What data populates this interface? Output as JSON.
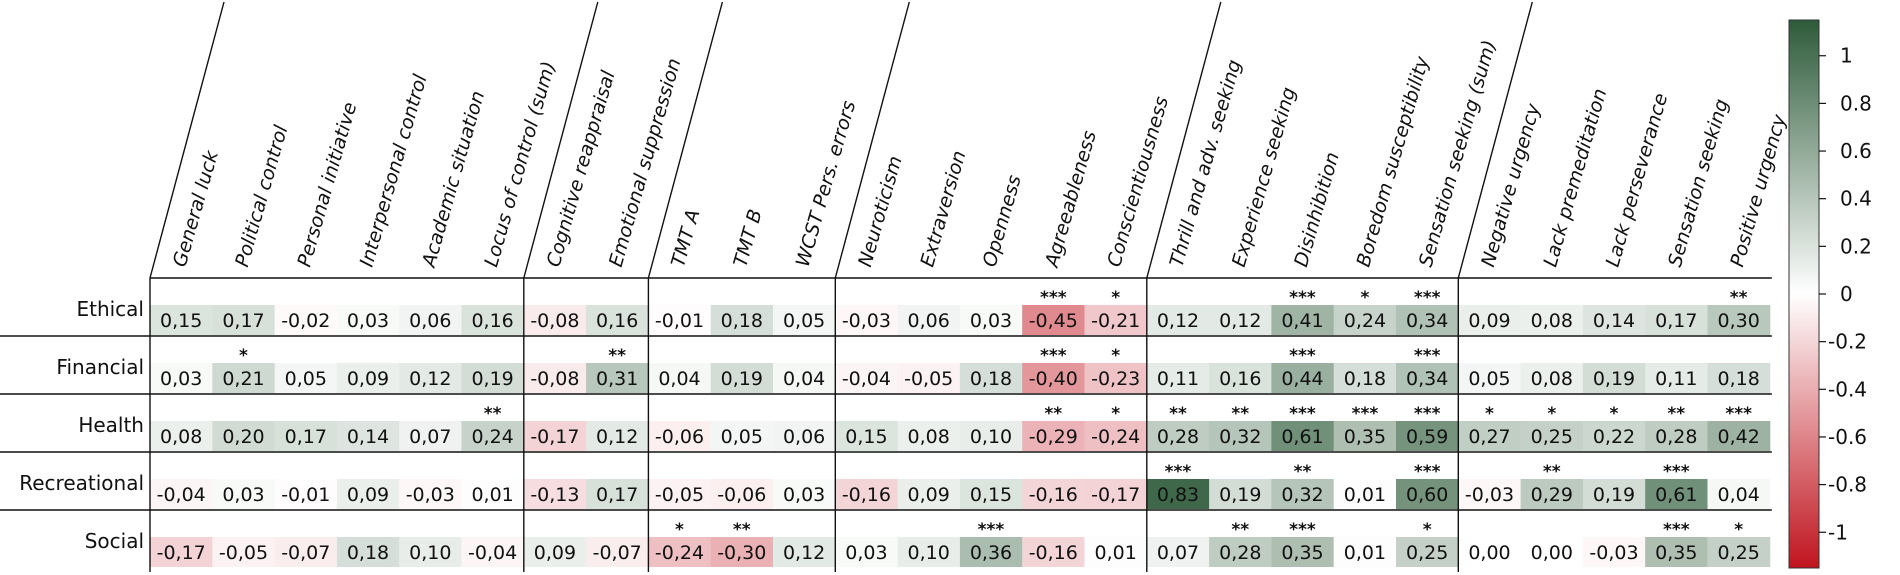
{
  "chart_data": {
    "type": "heatmap",
    "columns": [
      "General luck",
      "Political control",
      "Personal initiative",
      "Interpersonal control",
      "Academic situation",
      "Locus of control (sum)",
      "Cognitive reappraisal",
      "Emotional suppression",
      "TMT A",
      "TMT B",
      "WCST Pers. errors",
      "Neuroticism",
      "Extraversion",
      "Openness",
      "Agreeableness",
      "Conscientiousness",
      "Thrill and adv. seeking",
      "Experience seeking",
      "Disinhibition",
      "Boredom susceptibility",
      "Sensation seeking (sum)",
      "Negative urgency",
      "Lack premeditation",
      "Lack perseverance",
      "Sensation seeking",
      "Positive urgency"
    ],
    "rows": [
      "Ethical",
      "Financial",
      "Health",
      "Recreational",
      "Social"
    ],
    "values": [
      [
        0.15,
        0.17,
        -0.02,
        0.03,
        0.06,
        0.16,
        -0.08,
        0.16,
        -0.01,
        0.18,
        0.05,
        -0.03,
        0.06,
        0.03,
        -0.45,
        -0.21,
        0.12,
        0.12,
        0.41,
        0.24,
        0.34,
        0.09,
        0.08,
        0.14,
        0.17,
        0.3
      ],
      [
        0.03,
        0.21,
        0.05,
        0.09,
        0.12,
        0.19,
        -0.08,
        0.31,
        0.04,
        0.19,
        0.04,
        -0.04,
        -0.05,
        0.18,
        -0.4,
        -0.23,
        0.11,
        0.16,
        0.44,
        0.18,
        0.34,
        0.05,
        0.08,
        0.19,
        0.11,
        0.18
      ],
      [
        0.08,
        0.2,
        0.17,
        0.14,
        0.07,
        0.24,
        -0.17,
        0.12,
        -0.06,
        0.05,
        0.06,
        0.15,
        0.08,
        0.1,
        -0.29,
        -0.24,
        0.28,
        0.32,
        0.61,
        0.35,
        0.59,
        0.27,
        0.25,
        0.22,
        0.28,
        0.42
      ],
      [
        -0.04,
        0.03,
        -0.01,
        0.09,
        -0.03,
        0.01,
        -0.13,
        0.17,
        -0.05,
        -0.06,
        0.03,
        -0.16,
        0.09,
        0.15,
        -0.16,
        -0.17,
        0.83,
        0.19,
        0.32,
        0.01,
        0.6,
        -0.03,
        0.29,
        0.19,
        0.61,
        0.04
      ],
      [
        -0.17,
        -0.05,
        -0.07,
        0.18,
        0.1,
        -0.04,
        0.09,
        -0.07,
        -0.24,
        -0.3,
        0.12,
        0.03,
        0.1,
        0.36,
        -0.16,
        0.01,
        0.07,
        0.28,
        0.35,
        0.01,
        0.25,
        0.0,
        0.0,
        -0.03,
        0.35,
        0.25
      ]
    ],
    "labels": [
      [
        "0,15",
        "0,17",
        "-0,02",
        "0,03",
        "0,06",
        "0,16",
        "-0,08",
        "0,16",
        "-0,01",
        "0,18",
        "0,05",
        "-0,03",
        "0,06",
        "0,03",
        "-0,45",
        "-0,21",
        "0,12",
        "0,12",
        "0,41",
        "0,24",
        "0,34",
        "0,09",
        "0,08",
        "0,14",
        "0,17",
        "0,30"
      ],
      [
        "0,03",
        "0,21",
        "0,05",
        "0,09",
        "0,12",
        "0,19",
        "-0,08",
        "0,31",
        "0,04",
        "0,19",
        "0,04",
        "-0,04",
        "-0,05",
        "0,18",
        "-0,40",
        "-0,23",
        "0,11",
        "0,16",
        "0,44",
        "0,18",
        "0,34",
        "0,05",
        "0,08",
        "0,19",
        "0,11",
        "0,18"
      ],
      [
        "0,08",
        "0,20",
        "0,17",
        "0,14",
        "0,07",
        "0,24",
        "-0,17",
        "0,12",
        "-0,06",
        "0,05",
        "0,06",
        "0,15",
        "0,08",
        "0,10",
        "-0,29",
        "-0,24",
        "0,28",
        "0,32",
        "0,61",
        "0,35",
        "0,59",
        "0,27",
        "0,25",
        "0,22",
        "0,28",
        "0,42"
      ],
      [
        "-0,04",
        "0,03",
        "-0,01",
        "0,09",
        "-0,03",
        "0,01",
        "-0,13",
        "0,17",
        "-0,05",
        "-0,06",
        "0,03",
        "-0,16",
        "0,09",
        "0,15",
        "-0,16",
        "-0,17",
        "0,83",
        "0,19",
        "0,32",
        "0,01",
        "0,60",
        "-0,03",
        "0,29",
        "0,19",
        "0,61",
        "0,04"
      ],
      [
        "-0,17",
        "-0,05",
        "-0,07",
        "0,18",
        "0,10",
        "-0,04",
        "0,09",
        "-0,07",
        "-0,24",
        "-0,30",
        "0,12",
        "0,03",
        "0,10",
        "0,36",
        "-0,16",
        "0,01",
        "0,07",
        "0,28",
        "0,35",
        "0,01",
        "0,25",
        "0,00",
        "0,00",
        "-0,03",
        "0,35",
        "0,25"
      ]
    ],
    "significance": [
      [
        "",
        "",
        "",
        "",
        "",
        "",
        "",
        "",
        "",
        "",
        "",
        "",
        "",
        "",
        "***",
        "*",
        "",
        "",
        "***",
        "*",
        "***",
        "",
        "",
        "",
        "",
        "**"
      ],
      [
        "",
        "*",
        "",
        "",
        "",
        "",
        "",
        "**",
        "",
        "",
        "",
        "",
        "",
        "",
        "***",
        "*",
        "",
        "",
        "***",
        "",
        "***",
        "",
        "",
        "",
        "",
        ""
      ],
      [
        "",
        "",
        "",
        "",
        "",
        "**",
        "",
        "",
        "",
        "",
        "",
        "",
        "",
        "",
        "**",
        "*",
        "**",
        "**",
        "***",
        "***",
        "***",
        "*",
        "*",
        "*",
        "**",
        "***"
      ],
      [
        "",
        "",
        "",
        "",
        "",
        "",
        "",
        "",
        "",
        "",
        "",
        "",
        "",
        "",
        "",
        "",
        "***",
        "",
        "**",
        "",
        "***",
        "",
        "**",
        "",
        "***",
        ""
      ],
      [
        "",
        "",
        "",
        "",
        "",
        "",
        "",
        "",
        "*",
        "**",
        "",
        "",
        "",
        "***",
        "",
        "",
        "",
        "**",
        "***",
        "",
        "*",
        "",
        "",
        "",
        "***",
        "*"
      ]
    ],
    "column_groups": [
      6,
      2,
      3,
      5,
      5,
      5
    ],
    "colorbar": {
      "range": [
        -1.15,
        1.15
      ],
      "ticks": [
        "1",
        "0.8",
        "0.6",
        "0.4",
        "0.2",
        "0",
        "-0.2",
        "-0.4",
        "-0.6",
        "-0.8",
        "-1"
      ],
      "tick_values": [
        1,
        0.8,
        0.6,
        0.4,
        0.2,
        0,
        -0.2,
        -0.4,
        -0.6,
        -0.8,
        -1
      ],
      "color_low": "#c0141e",
      "color_mid": "#ffffff",
      "color_high": "#2e5b3a"
    }
  }
}
